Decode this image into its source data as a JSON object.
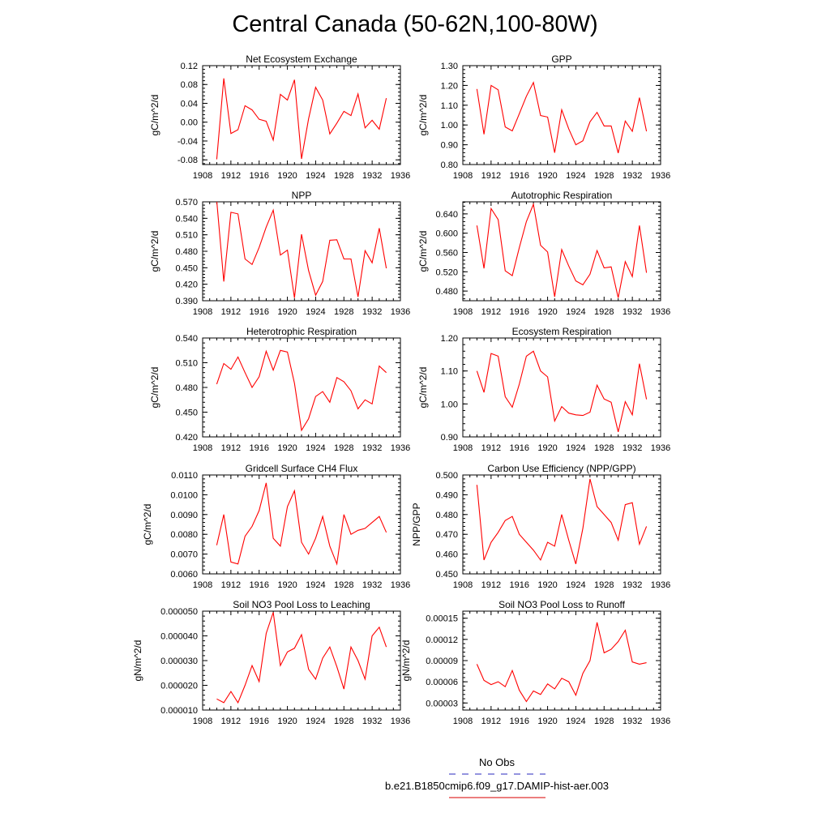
{
  "title": "Central Canada (50-62N,100-80W)",
  "legend": [
    {
      "label": "No Obs",
      "color": "#5555cc",
      "dash": true
    },
    {
      "label": "b.e21.B1850cmip6.f09_g17.DAMIP-hist-aer.003",
      "color": "#e03030",
      "dash": false
    }
  ],
  "line_color": "#ff0000",
  "chart_data": [
    {
      "type": "line",
      "title": "Net Ecosystem Exchange",
      "ylabel": "gC/m^2/d",
      "xlim": [
        1908,
        1936
      ],
      "xticks": [
        1908,
        1912,
        1916,
        1920,
        1924,
        1928,
        1932,
        1936
      ],
      "xticklabels": [
        "1908",
        "1912",
        "1916",
        "1920",
        "1924",
        "1928",
        "1932",
        "1936"
      ],
      "ylim": [
        -0.09,
        0.12
      ],
      "yticks": [
        -0.08,
        -0.04,
        0.0,
        0.04,
        0.08,
        0.12
      ],
      "yticklabels": [
        "-0.08",
        "-0.04",
        "0.00",
        "0.04",
        "0.08",
        "0.12"
      ],
      "x": [
        1910,
        1911,
        1912,
        1913,
        1914,
        1915,
        1916,
        1917,
        1918,
        1919,
        1920,
        1921,
        1922,
        1923,
        1924,
        1925,
        1926,
        1927,
        1928,
        1929,
        1930,
        1931,
        1932,
        1933,
        1934
      ],
      "y": [
        -0.079,
        0.093,
        -0.024,
        -0.016,
        0.035,
        0.026,
        0.006,
        0.002,
        -0.038,
        0.059,
        0.047,
        0.09,
        -0.078,
        0.007,
        0.074,
        0.047,
        -0.025,
        -0.002,
        0.023,
        0.014,
        0.06,
        -0.012,
        0.004,
        -0.015,
        0.051
      ]
    },
    {
      "type": "line",
      "title": "GPP",
      "ylabel": "gC/m^2/d",
      "xlim": [
        1908,
        1936
      ],
      "xticks": [
        1908,
        1912,
        1916,
        1920,
        1924,
        1928,
        1932,
        1936
      ],
      "xticklabels": [
        "1908",
        "1912",
        "1916",
        "1920",
        "1924",
        "1928",
        "1932",
        "1936"
      ],
      "ylim": [
        0.8,
        1.3
      ],
      "yticks": [
        0.8,
        0.9,
        1.0,
        1.1,
        1.2,
        1.3
      ],
      "yticklabels": [
        "0.80",
        "0.90",
        "1.00",
        "1.10",
        "1.20",
        "1.30"
      ],
      "x": [
        1910,
        1911,
        1912,
        1913,
        1914,
        1915,
        1916,
        1917,
        1918,
        1919,
        1920,
        1921,
        1922,
        1923,
        1924,
        1925,
        1926,
        1927,
        1928,
        1929,
        1930,
        1931,
        1932,
        1933,
        1934
      ],
      "y": [
        1.182,
        0.953,
        1.2,
        1.178,
        0.99,
        0.97,
        1.057,
        1.145,
        1.215,
        1.048,
        1.04,
        0.86,
        1.077,
        0.98,
        0.9,
        0.92,
        1.016,
        1.064,
        0.995,
        0.995,
        0.858,
        1.02,
        0.968,
        1.138,
        0.968
      ]
    },
    {
      "type": "line",
      "title": "NPP",
      "ylabel": "gC/m^2/d",
      "xlim": [
        1908,
        1936
      ],
      "xticks": [
        1908,
        1912,
        1916,
        1920,
        1924,
        1928,
        1932,
        1936
      ],
      "xticklabels": [
        "1908",
        "1912",
        "1916",
        "1920",
        "1924",
        "1928",
        "1932",
        "1936"
      ],
      "ylim": [
        0.39,
        0.57
      ],
      "yticks": [
        0.39,
        0.42,
        0.45,
        0.48,
        0.51,
        0.54,
        0.57
      ],
      "yticklabels": [
        "0.390",
        "0.420",
        "0.450",
        "0.480",
        "0.510",
        "0.540",
        "0.570"
      ],
      "x": [
        1910,
        1911,
        1912,
        1913,
        1914,
        1915,
        1916,
        1917,
        1918,
        1919,
        1920,
        1921,
        1922,
        1923,
        1924,
        1925,
        1926,
        1927,
        1928,
        1929,
        1930,
        1931,
        1932,
        1933,
        1934
      ],
      "y": [
        0.572,
        0.425,
        0.551,
        0.548,
        0.466,
        0.456,
        0.487,
        0.524,
        0.555,
        0.473,
        0.482,
        0.395,
        0.511,
        0.445,
        0.4,
        0.425,
        0.5,
        0.501,
        0.466,
        0.466,
        0.397,
        0.481,
        0.459,
        0.522,
        0.449
      ]
    },
    {
      "type": "line",
      "title": "Autotrophic Respiration",
      "ylabel": "gC/m^2/d",
      "xlim": [
        1908,
        1936
      ],
      "xticks": [
        1908,
        1912,
        1916,
        1920,
        1924,
        1928,
        1932,
        1936
      ],
      "xticklabels": [
        "1908",
        "1912",
        "1916",
        "1920",
        "1924",
        "1928",
        "1932",
        "1936"
      ],
      "ylim": [
        0.46,
        0.665
      ],
      "yticks": [
        0.48,
        0.52,
        0.56,
        0.6,
        0.64
      ],
      "yticklabels": [
        "0.480",
        "0.520",
        "0.560",
        "0.600",
        "0.640"
      ],
      "x": [
        1910,
        1911,
        1912,
        1913,
        1914,
        1915,
        1916,
        1917,
        1918,
        1919,
        1920,
        1921,
        1922,
        1923,
        1924,
        1925,
        1926,
        1927,
        1928,
        1929,
        1930,
        1931,
        1932,
        1933,
        1934
      ],
      "y": [
        0.616,
        0.527,
        0.651,
        0.628,
        0.522,
        0.512,
        0.57,
        0.624,
        0.66,
        0.575,
        0.561,
        0.468,
        0.566,
        0.532,
        0.501,
        0.493,
        0.515,
        0.564,
        0.528,
        0.53,
        0.466,
        0.541,
        0.51,
        0.616,
        0.518
      ]
    },
    {
      "type": "line",
      "title": "Heterotrophic Respiration",
      "ylabel": "gC/m^2/d",
      "xlim": [
        1908,
        1936
      ],
      "xticks": [
        1908,
        1912,
        1916,
        1920,
        1924,
        1928,
        1932,
        1936
      ],
      "xticklabels": [
        "1908",
        "1912",
        "1916",
        "1920",
        "1924",
        "1928",
        "1932",
        "1936"
      ],
      "ylim": [
        0.42,
        0.54
      ],
      "yticks": [
        0.42,
        0.45,
        0.48,
        0.51,
        0.54
      ],
      "yticklabels": [
        "0.420",
        "0.450",
        "0.480",
        "0.510",
        "0.540"
      ],
      "x": [
        1910,
        1911,
        1912,
        1913,
        1914,
        1915,
        1916,
        1917,
        1918,
        1919,
        1920,
        1921,
        1922,
        1923,
        1924,
        1925,
        1926,
        1927,
        1928,
        1929,
        1930,
        1931,
        1932,
        1933,
        1934
      ],
      "y": [
        0.484,
        0.509,
        0.502,
        0.517,
        0.498,
        0.48,
        0.493,
        0.524,
        0.501,
        0.525,
        0.523,
        0.485,
        0.428,
        0.442,
        0.469,
        0.475,
        0.462,
        0.492,
        0.487,
        0.476,
        0.454,
        0.465,
        0.46,
        0.506,
        0.498
      ]
    },
    {
      "type": "line",
      "title": "Ecosystem Respiration",
      "ylabel": "gC/m^2/d",
      "xlim": [
        1908,
        1936
      ],
      "xticks": [
        1908,
        1912,
        1916,
        1920,
        1924,
        1928,
        1932,
        1936
      ],
      "xticklabels": [
        "1908",
        "1912",
        "1916",
        "1920",
        "1924",
        "1928",
        "1932",
        "1936"
      ],
      "ylim": [
        0.9,
        1.2
      ],
      "yticks": [
        0.9,
        1.0,
        1.1,
        1.2
      ],
      "yticklabels": [
        "0.90",
        "1.00",
        "1.10",
        "1.20"
      ],
      "x": [
        1910,
        1911,
        1912,
        1913,
        1914,
        1915,
        1916,
        1917,
        1918,
        1919,
        1920,
        1921,
        1922,
        1923,
        1924,
        1925,
        1926,
        1927,
        1928,
        1929,
        1930,
        1931,
        1932,
        1933,
        1934
      ],
      "y": [
        1.1,
        1.035,
        1.153,
        1.145,
        1.022,
        0.99,
        1.06,
        1.145,
        1.16,
        1.1,
        1.082,
        0.948,
        0.992,
        0.972,
        0.967,
        0.965,
        0.975,
        1.057,
        1.015,
        1.005,
        0.915,
        1.007,
        0.967,
        1.122,
        1.014
      ]
    },
    {
      "type": "line",
      "title": "Gridcell Surface CH4 Flux",
      "ylabel": "gC/m^2/d",
      "xlim": [
        1908,
        1936
      ],
      "xticks": [
        1908,
        1912,
        1916,
        1920,
        1924,
        1928,
        1932,
        1936
      ],
      "xticklabels": [
        "1908",
        "1912",
        "1916",
        "1920",
        "1924",
        "1928",
        "1932",
        "1936"
      ],
      "ylim": [
        0.006,
        0.011
      ],
      "yticks": [
        0.006,
        0.007,
        0.008,
        0.009,
        0.01,
        0.011
      ],
      "yticklabels": [
        "0.0060",
        "0.0070",
        "0.0080",
        "0.0090",
        "0.0100",
        "0.0110"
      ],
      "x": [
        1910,
        1911,
        1912,
        1913,
        1914,
        1915,
        1916,
        1917,
        1918,
        1919,
        1920,
        1921,
        1922,
        1923,
        1924,
        1925,
        1926,
        1927,
        1928,
        1929,
        1930,
        1931,
        1932,
        1933,
        1934
      ],
      "y": [
        0.00745,
        0.009,
        0.0066,
        0.0065,
        0.0079,
        0.0084,
        0.0092,
        0.0106,
        0.0078,
        0.0074,
        0.0094,
        0.0102,
        0.0076,
        0.007,
        0.0078,
        0.0089,
        0.0074,
        0.0065,
        0.009,
        0.008,
        0.0082,
        0.0083,
        0.0086,
        0.0089,
        0.0081
      ]
    },
    {
      "type": "line",
      "title": "Carbon Use Efficiency (NPP/GPP)",
      "ylabel": "NPP/GPP",
      "xlim": [
        1908,
        1936
      ],
      "xticks": [
        1908,
        1912,
        1916,
        1920,
        1924,
        1928,
        1932,
        1936
      ],
      "xticklabels": [
        "1908",
        "1912",
        "1916",
        "1920",
        "1924",
        "1928",
        "1932",
        "1936"
      ],
      "ylim": [
        0.45,
        0.5
      ],
      "yticks": [
        0.45,
        0.46,
        0.47,
        0.48,
        0.49,
        0.5
      ],
      "yticklabels": [
        "0.450",
        "0.460",
        "0.470",
        "0.480",
        "0.490",
        "0.500"
      ],
      "x": [
        1910,
        1911,
        1912,
        1913,
        1914,
        1915,
        1916,
        1917,
        1918,
        1919,
        1920,
        1921,
        1922,
        1923,
        1924,
        1925,
        1926,
        1927,
        1928,
        1929,
        1930,
        1931,
        1932,
        1933,
        1934
      ],
      "y": [
        0.495,
        0.457,
        0.466,
        0.471,
        0.477,
        0.479,
        0.47,
        0.466,
        0.462,
        0.457,
        0.466,
        0.464,
        0.48,
        0.467,
        0.455,
        0.473,
        0.498,
        0.484,
        0.48,
        0.476,
        0.467,
        0.485,
        0.486,
        0.465,
        0.474
      ]
    },
    {
      "type": "line",
      "title": "Soil NO3 Pool Loss to Leaching",
      "ylabel": "gN/m^2/d",
      "xlim": [
        1908,
        1936
      ],
      "xticks": [
        1908,
        1912,
        1916,
        1920,
        1924,
        1928,
        1932,
        1936
      ],
      "xticklabels": [
        "1908",
        "1912",
        "1916",
        "1920",
        "1924",
        "1928",
        "1932",
        "1936"
      ],
      "ylim": [
        1e-05,
        5e-05
      ],
      "yticks": [
        1e-05,
        2e-05,
        3e-05,
        4e-05,
        5e-05
      ],
      "yticklabels": [
        "0.000010",
        "0.000020",
        "0.000030",
        "0.000040",
        "0.000050"
      ],
      "x": [
        1910,
        1911,
        1912,
        1913,
        1914,
        1915,
        1916,
        1917,
        1918,
        1919,
        1920,
        1921,
        1922,
        1923,
        1924,
        1925,
        1926,
        1927,
        1928,
        1929,
        1930,
        1931,
        1932,
        1933,
        1934
      ],
      "y": [
        1.45e-05,
        1.3e-05,
        1.75e-05,
        1.3e-05,
        2e-05,
        2.8e-05,
        2.15e-05,
        4.1e-05,
        4.95e-05,
        2.8e-05,
        3.35e-05,
        3.5e-05,
        4.05e-05,
        2.65e-05,
        2.25e-05,
        3.1e-05,
        3.55e-05,
        2.75e-05,
        1.85e-05,
        3.55e-05,
        3e-05,
        2.25e-05,
        4e-05,
        4.35e-05,
        3.55e-05
      ]
    },
    {
      "type": "line",
      "title": "Soil NO3 Pool Loss to Runoff",
      "ylabel": "gN/m^2/d",
      "xlim": [
        1908,
        1936
      ],
      "xticks": [
        1908,
        1912,
        1916,
        1920,
        1924,
        1928,
        1932,
        1936
      ],
      "xticklabels": [
        "1908",
        "1912",
        "1916",
        "1920",
        "1924",
        "1928",
        "1932",
        "1936"
      ],
      "ylim": [
        2e-05,
        0.00016
      ],
      "yticks": [
        3e-05,
        6e-05,
        9e-05,
        0.00012,
        0.00015
      ],
      "yticklabels": [
        "0.00003",
        "0.00006",
        "0.00009",
        "0.00012",
        "0.00015"
      ],
      "x": [
        1910,
        1911,
        1912,
        1913,
        1914,
        1915,
        1916,
        1917,
        1918,
        1919,
        1920,
        1921,
        1922,
        1923,
        1924,
        1925,
        1926,
        1927,
        1928,
        1929,
        1930,
        1931,
        1932,
        1933,
        1934
      ],
      "y": [
        8.5e-05,
        6.2e-05,
        5.6e-05,
        6e-05,
        5.3e-05,
        7.6e-05,
        4.8e-05,
        3.2e-05,
        4.7e-05,
        4.2e-05,
        5.7e-05,
        5e-05,
        6.5e-05,
        6e-05,
        4.1e-05,
        7.2e-05,
        9e-05,
        0.000144,
        0.000101,
        0.000106,
        0.000117,
        0.000133,
        8.8e-05,
        8.5e-05,
        8.7e-05
      ]
    }
  ]
}
